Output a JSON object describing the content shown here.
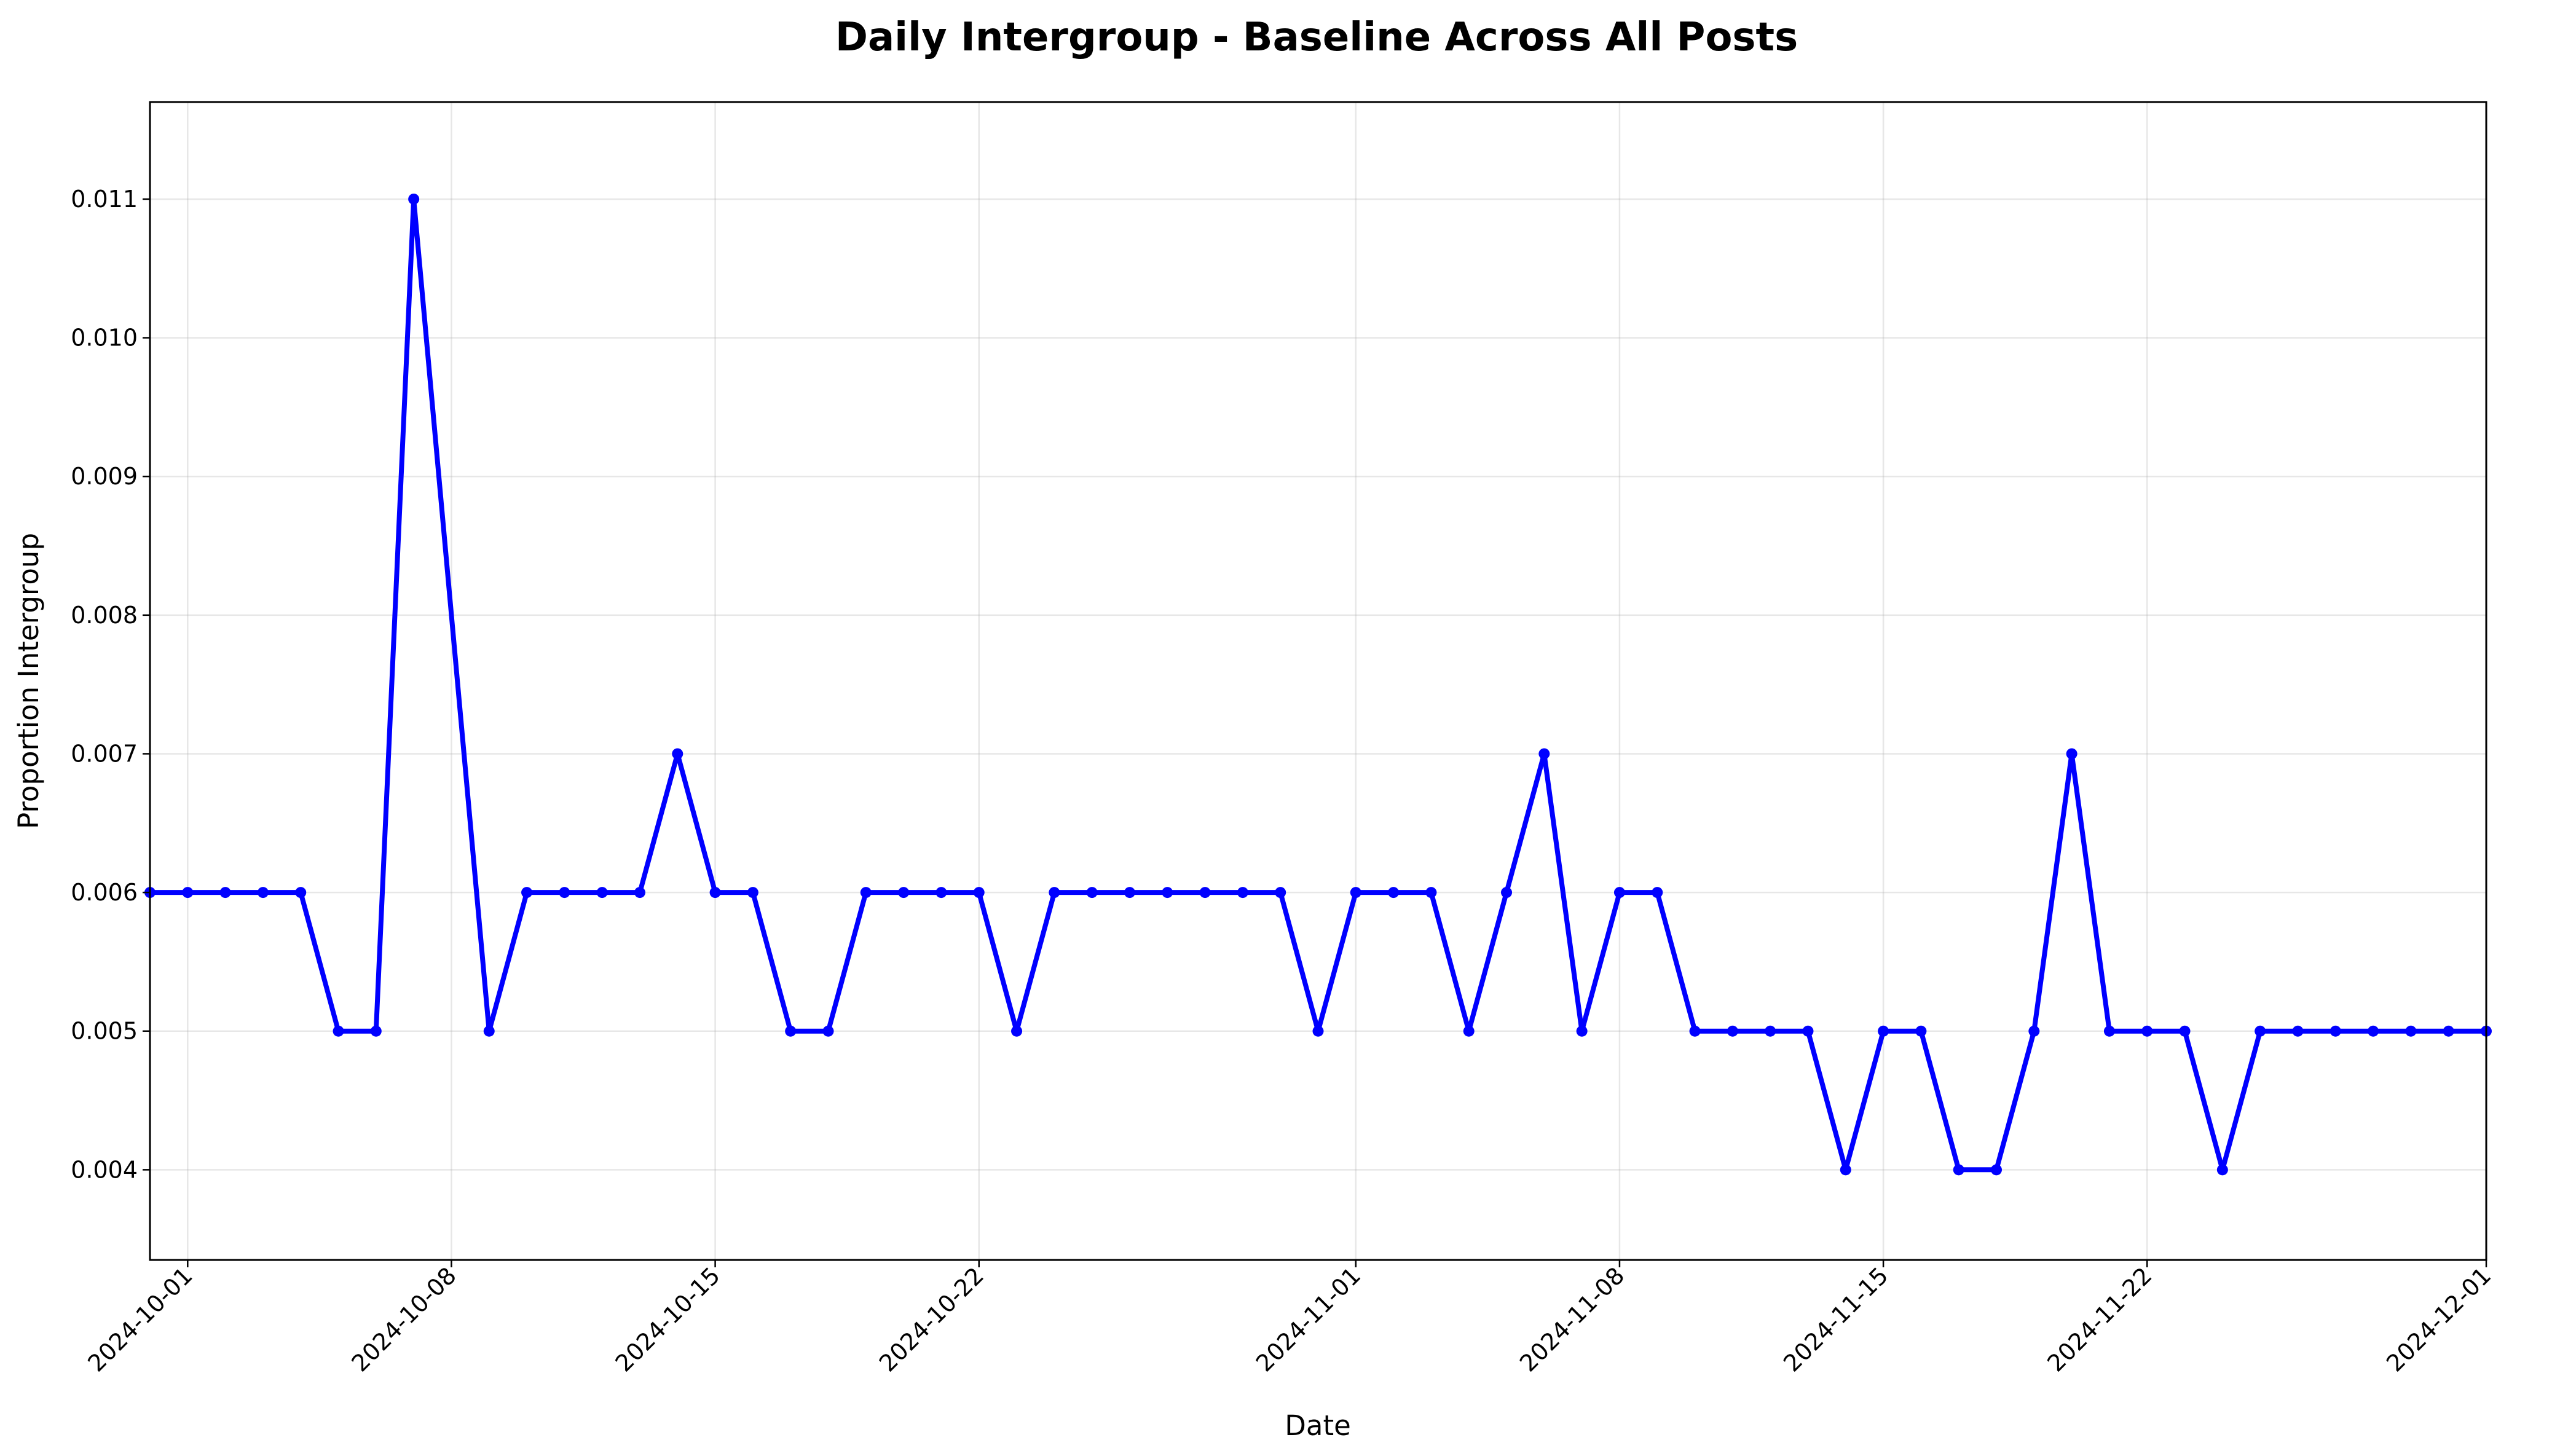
{
  "chart_data": {
    "type": "line",
    "title": "Daily Intergroup - Baseline Across All Posts",
    "xlabel": "Date",
    "ylabel": "Proportion Intergroup",
    "xlim": [
      "2024-09-30",
      "2024-12-01"
    ],
    "ylim": [
      0.00335,
      0.0117
    ],
    "y_ticks": [
      "0.004",
      "0.005",
      "0.006",
      "0.007",
      "0.008",
      "0.009",
      "0.010",
      "0.011"
    ],
    "x_ticks": [
      "2024-10-01",
      "2024-10-08",
      "2024-10-15",
      "2024-10-22",
      "2024-11-01",
      "2024-11-08",
      "2024-11-15",
      "2024-11-22",
      "2024-12-01"
    ],
    "grid": true,
    "series": [
      {
        "color": "#0000ff",
        "marker": "circle",
        "points": [
          [
            "2024-09-30",
            0.006
          ],
          [
            "2024-10-01",
            0.006
          ],
          [
            "2024-10-02",
            0.006
          ],
          [
            "2024-10-03",
            0.006
          ],
          [
            "2024-10-04",
            0.006
          ],
          [
            "2024-10-05",
            0.005
          ],
          [
            "2024-10-06",
            0.005
          ],
          [
            "2024-10-07",
            0.011
          ],
          [
            "2024-10-09",
            0.005
          ],
          [
            "2024-10-10",
            0.006
          ],
          [
            "2024-10-11",
            0.006
          ],
          [
            "2024-10-12",
            0.006
          ],
          [
            "2024-10-13",
            0.006
          ],
          [
            "2024-10-14",
            0.007
          ],
          [
            "2024-10-15",
            0.006
          ],
          [
            "2024-10-16",
            0.006
          ],
          [
            "2024-10-17",
            0.005
          ],
          [
            "2024-10-18",
            0.005
          ],
          [
            "2024-10-19",
            0.006
          ],
          [
            "2024-10-20",
            0.006
          ],
          [
            "2024-10-21",
            0.006
          ],
          [
            "2024-10-22",
            0.006
          ],
          [
            "2024-10-23",
            0.005
          ],
          [
            "2024-10-24",
            0.006
          ],
          [
            "2024-10-25",
            0.006
          ],
          [
            "2024-10-26",
            0.006
          ],
          [
            "2024-10-27",
            0.006
          ],
          [
            "2024-10-28",
            0.006
          ],
          [
            "2024-10-29",
            0.006
          ],
          [
            "2024-10-30",
            0.006
          ],
          [
            "2024-10-31",
            0.005
          ],
          [
            "2024-11-01",
            0.006
          ],
          [
            "2024-11-02",
            0.006
          ],
          [
            "2024-11-03",
            0.006
          ],
          [
            "2024-11-04",
            0.005
          ],
          [
            "2024-11-05",
            0.006
          ],
          [
            "2024-11-06",
            0.007
          ],
          [
            "2024-11-07",
            0.005
          ],
          [
            "2024-11-08",
            0.006
          ],
          [
            "2024-11-09",
            0.006
          ],
          [
            "2024-11-10",
            0.005
          ],
          [
            "2024-11-11",
            0.005
          ],
          [
            "2024-11-12",
            0.005
          ],
          [
            "2024-11-13",
            0.005
          ],
          [
            "2024-11-14",
            0.004
          ],
          [
            "2024-11-15",
            0.005
          ],
          [
            "2024-11-16",
            0.005
          ],
          [
            "2024-11-17",
            0.004
          ],
          [
            "2024-11-18",
            0.004
          ],
          [
            "2024-11-19",
            0.005
          ],
          [
            "2024-11-20",
            0.007
          ],
          [
            "2024-11-21",
            0.005
          ],
          [
            "2024-11-22",
            0.005
          ],
          [
            "2024-11-23",
            0.005
          ],
          [
            "2024-11-24",
            0.004
          ],
          [
            "2024-11-25",
            0.005
          ],
          [
            "2024-11-26",
            0.005
          ],
          [
            "2024-11-27",
            0.005
          ],
          [
            "2024-11-28",
            0.005
          ],
          [
            "2024-11-29",
            0.005
          ],
          [
            "2024-11-30",
            0.005
          ],
          [
            "2024-12-01",
            0.005
          ]
        ]
      }
    ]
  }
}
